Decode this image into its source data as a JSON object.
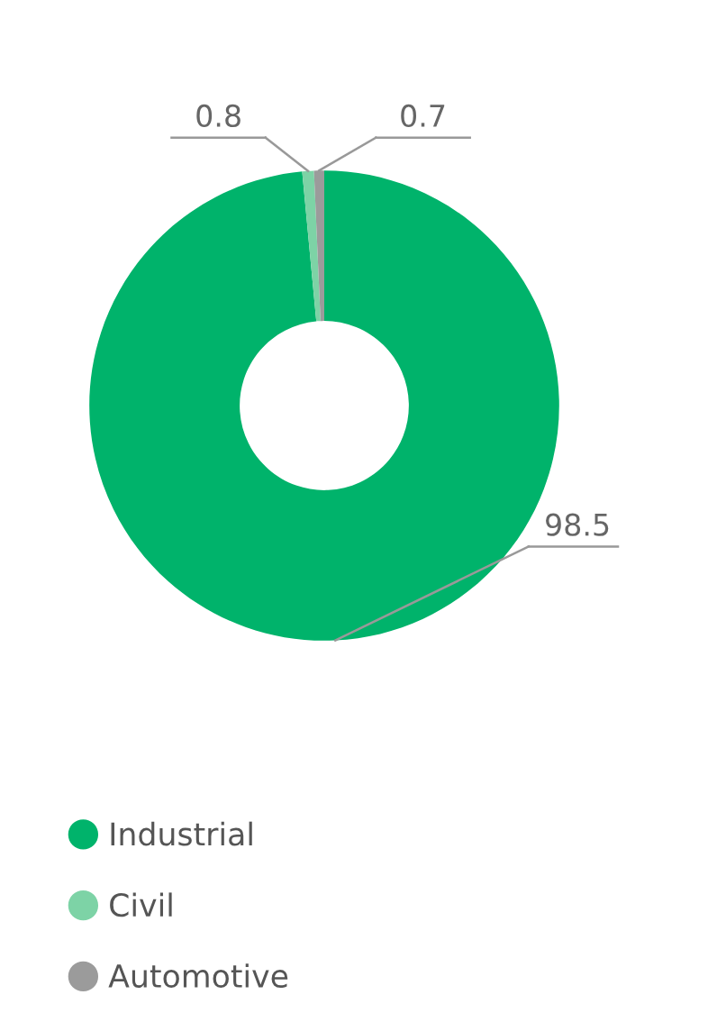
{
  "chart_data": {
    "type": "donut",
    "categories": [
      "Industrial",
      "Civil",
      "Automotive"
    ],
    "values": [
      98.5,
      0.8,
      0.7
    ],
    "colors": [
      "#00b36b",
      "#7dd3a6",
      "#9b9b9b"
    ],
    "data_labels": true,
    "legend": "bottom left"
  }
}
